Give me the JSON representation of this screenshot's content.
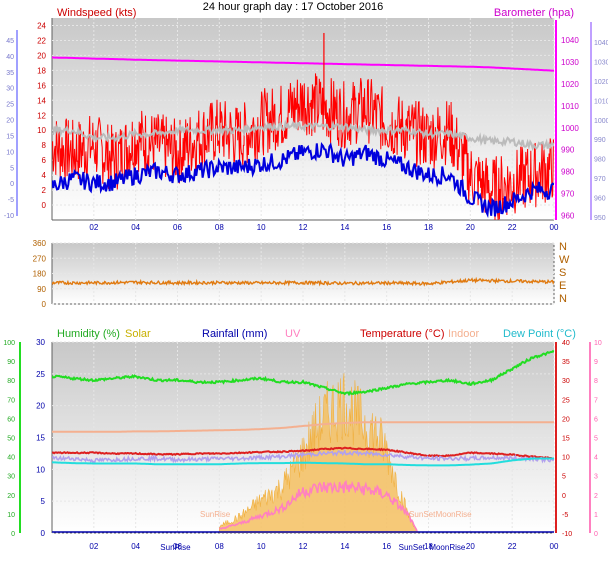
{
  "title": "24 hour graph day : 17 October 2016",
  "time_axis": {
    "ticks": [
      "02",
      "04",
      "06",
      "08",
      "10",
      "12",
      "14",
      "16",
      "18",
      "20",
      "22",
      "00"
    ]
  },
  "chart_data": [
    {
      "type": "line",
      "name": "wind-pressure",
      "labels": {
        "left": "Windspeed (kts)",
        "right": "Barometer (hpa)"
      },
      "ylim_left": [
        -2,
        25
      ],
      "ylim_right": [
        958,
        1050
      ],
      "left_ticks": [
        "24",
        "22",
        "20",
        "18",
        "16",
        "14",
        "12",
        "10",
        "8",
        "6",
        "4",
        "2",
        "0"
      ],
      "left_outer_ticks": [
        "45",
        "40",
        "35",
        "30",
        "25",
        "20",
        "15",
        "10",
        "5",
        "0",
        "-5",
        "-10"
      ],
      "right_ticks": [
        "1040",
        "1030",
        "1020",
        "1010",
        "1000",
        "990",
        "980",
        "970",
        "960"
      ],
      "right_outer_ticks": [
        "1040",
        "1030",
        "1020",
        "1010",
        "1000",
        "990",
        "980",
        "970",
        "960",
        "950"
      ],
      "colors": {
        "windspeed": "#ff0000",
        "average": "#0000dd",
        "barometer": "#ff00ff",
        "gust": "#bbbbbb"
      },
      "x_hours": [
        0,
        1,
        2,
        3,
        4,
        5,
        6,
        7,
        8,
        9,
        10,
        11,
        12,
        13,
        14,
        15,
        16,
        17,
        18,
        19,
        20,
        21,
        22,
        23,
        24
      ],
      "series": [
        {
          "key": "windspeed",
          "axis": "left",
          "values": [
            8,
            7,
            8,
            6,
            9,
            8,
            7,
            9,
            10,
            9,
            11,
            12,
            14,
            13,
            12,
            13,
            11,
            10,
            9,
            10,
            4,
            2,
            3,
            4,
            5
          ],
          "noise": 4.5
        },
        {
          "key": "average",
          "axis": "left",
          "values": [
            2.5,
            3.5,
            3,
            3,
            4,
            4.5,
            4,
            4.5,
            5,
            5,
            5.5,
            6,
            7,
            7.5,
            6,
            7,
            6,
            5,
            4,
            4,
            1,
            -0.5,
            0.5,
            2,
            2
          ],
          "noise": 1.2
        },
        {
          "key": "gust",
          "axis": "left",
          "values": [
            10,
            10,
            9,
            9,
            9.5,
            9.5,
            10,
            10,
            10,
            10,
            10.5,
            10.5,
            10.5,
            10.5,
            10.5,
            10,
            10,
            10,
            9.5,
            9.5,
            9,
            8.5,
            8.5,
            8,
            8
          ],
          "noise": 0.5
        },
        {
          "key": "barometer",
          "axis": "right",
          "values": [
            1032,
            1031.8,
            1031.5,
            1031.3,
            1031,
            1030.8,
            1030.6,
            1030.4,
            1030.2,
            1030,
            1029.8,
            1029.6,
            1029.4,
            1029.2,
            1029,
            1028.8,
            1028.6,
            1028.4,
            1028.2,
            1028,
            1027.8,
            1027.5,
            1027,
            1026.5,
            1026
          ]
        }
      ],
      "peak": {
        "hour": 13,
        "value": 23
      }
    },
    {
      "type": "line",
      "name": "wind-direction",
      "ylim": [
        0,
        360
      ],
      "left_ticks": [
        "360",
        "270",
        "180",
        "90",
        "0"
      ],
      "right_ticks": [
        "N",
        "W",
        "S",
        "E",
        "N"
      ],
      "colors": {
        "direction": "#e07a10"
      },
      "x_hours": [
        0,
        2,
        4,
        6,
        8,
        10,
        12,
        14,
        16,
        18,
        20,
        22,
        24
      ],
      "series": [
        {
          "key": "direction",
          "values": [
            125,
            125,
            128,
            125,
            126,
            124,
            126,
            122,
            124,
            120,
            140,
            135,
            130
          ],
          "noise": 9
        }
      ]
    },
    {
      "type": "line",
      "name": "temperature-humidity",
      "labels": {
        "humidity": "Humidity (%)",
        "solar": "Solar",
        "rainfall": "Rainfall (mm)",
        "uv": "UV",
        "temperature": "Temperature (°C)",
        "indoor": "Indoor",
        "dewpoint": "Dew Point (°C)"
      },
      "ylim_left": [
        0,
        100
      ],
      "ylim_temp": [
        -10,
        40
      ],
      "left_ticks": [
        "100",
        "90",
        "80",
        "70",
        "60",
        "50",
        "40",
        "30",
        "20",
        "10",
        "0"
      ],
      "rain_ticks": [
        "30",
        "25",
        "20",
        "15",
        "10",
        "5",
        "0"
      ],
      "temp_ticks": [
        "40",
        "35",
        "30",
        "25",
        "20",
        "15",
        "10",
        "5",
        "0",
        "-5",
        "-10"
      ],
      "uv_ticks": [
        "10",
        "9",
        "8",
        "7",
        "6",
        "5",
        "4",
        "3",
        "2",
        "1",
        "0"
      ],
      "colors": {
        "humidity": "#22dd22",
        "solar": "#f5c060",
        "rainfall": "#0000aa",
        "uv": "#ff80c0",
        "temperature": "#dd2020",
        "indoor": "#f4b090",
        "dewpoint": "#22dddd",
        "dayline": "#b0a0ee"
      },
      "annotations": [
        {
          "text": "SunRise",
          "hour": 7.8,
          "row": "mid"
        },
        {
          "text": "SunRise",
          "hour": 5.9,
          "row": "bottom"
        },
        {
          "text": "SunSet",
          "hour": 17.7,
          "row": "mid"
        },
        {
          "text": "SunSet",
          "hour": 17.2,
          "row": "bottom"
        },
        {
          "text": "MoonRise",
          "hour": 19.2,
          "row": "mid"
        },
        {
          "text": "MoonRise",
          "hour": 18.9,
          "row": "bottom"
        }
      ],
      "x_hours": [
        0,
        1,
        2,
        3,
        4,
        5,
        6,
        7,
        8,
        9,
        10,
        11,
        12,
        13,
        14,
        15,
        16,
        17,
        18,
        19,
        20,
        21,
        22,
        23,
        24
      ],
      "series": [
        {
          "key": "humidity",
          "axis": "left",
          "values": [
            82,
            81,
            80,
            81,
            82,
            80,
            80,
            79,
            79,
            80,
            81,
            79,
            79,
            76,
            73,
            74,
            76,
            78,
            79,
            80,
            78,
            80,
            86,
            92,
            95
          ],
          "noise": 0.6
        },
        {
          "key": "indoor",
          "axis": "temp",
          "values": [
            16.5,
            16.5,
            16.5,
            16.5,
            16.6,
            16.6,
            16.7,
            16.8,
            16.9,
            17,
            17.2,
            17.5,
            18,
            18.5,
            18.8,
            19,
            19,
            19,
            19,
            19,
            19,
            19,
            19,
            19,
            19
          ]
        },
        {
          "key": "temperature",
          "axis": "temp",
          "values": [
            11,
            11,
            11,
            10.8,
            10.8,
            10.6,
            10.6,
            10.8,
            10.8,
            11,
            11.2,
            11.3,
            11.5,
            12,
            12.2,
            12,
            11.8,
            11,
            10.2,
            10.2,
            11,
            10.8,
            10.5,
            10,
            9.5
          ],
          "noise": 0.15
        },
        {
          "key": "dayline",
          "axis": "temp",
          "values": [
            9.5,
            9.5,
            9,
            9.2,
            9.5,
            9.5,
            9.2,
            9.3,
            9.5,
            9.5,
            9.8,
            10,
            10.5,
            10.8,
            11,
            10.8,
            10.5,
            10,
            9.5,
            9.5,
            9.5,
            9.7,
            9.6,
            9.5,
            9
          ],
          "noise": 0.5
        },
        {
          "key": "dewpoint",
          "axis": "temp",
          "values": [
            8.5,
            8.3,
            8.2,
            8.2,
            8.2,
            8,
            8,
            8,
            8,
            8.2,
            8.3,
            8.3,
            8.4,
            8.3,
            8.2,
            8,
            8,
            7.8,
            7.7,
            7.7,
            7.9,
            8.2,
            9,
            9.5,
            9.5
          ]
        }
      ],
      "solar": {
        "hours": [
          8,
          9,
          10,
          11,
          12,
          12.5,
          13,
          13.5,
          14,
          14.5,
          15,
          15.5,
          16,
          16.5,
          17,
          17.5
        ],
        "values": [
          2,
          5,
          10,
          14,
          24,
          30,
          35,
          38,
          40,
          36,
          33,
          30,
          25,
          15,
          6,
          0
        ]
      },
      "uv": {
        "hours": [
          8,
          9,
          10,
          11,
          12,
          13,
          14,
          15,
          16,
          17,
          17.5
        ],
        "values": [
          0.2,
          0.5,
          0.9,
          1.3,
          2.2,
          2.4,
          2.4,
          2.3,
          2.0,
          1.0,
          0
        ]
      }
    }
  ]
}
